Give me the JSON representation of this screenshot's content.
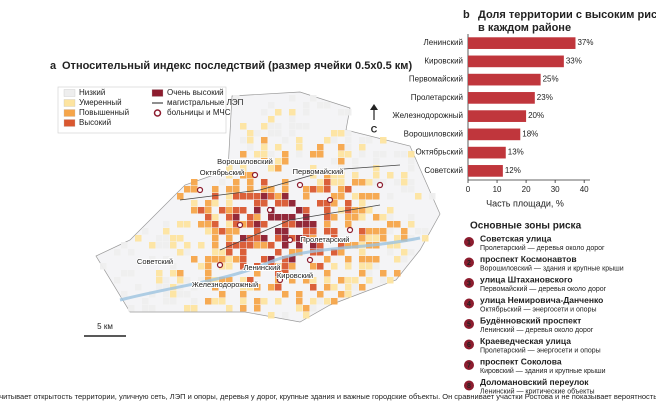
{
  "map": {
    "panel": "a",
    "title": "Относительный индекс последствий (размер ячейки 0.5x0.5 км)",
    "legend": [
      {
        "name": "Низкий",
        "color": "#eeeeee"
      },
      {
        "name": "Умеренный",
        "color": "#fde4a0"
      },
      {
        "name": "Повышенный",
        "color": "#f5a54a"
      },
      {
        "name": "Высокий",
        "color": "#d9572f"
      },
      {
        "name": "Очень высокий",
        "color": "#8c1c2e"
      },
      {
        "name": "магистральные ЛЭП",
        "color": "#444444"
      },
      {
        "name": "больницы и МЧС",
        "color": "#8c1c2e"
      }
    ],
    "districts": [
      "Ворошиловский",
      "Октябрьский",
      "Первомайский",
      "Советский",
      "Пролетарский",
      "Ленинский",
      "Кировский",
      "Железнодорожный"
    ],
    "north": "С",
    "scale": "5 км"
  },
  "chart_data": {
    "type": "bar",
    "orientation": "horizontal",
    "panel": "b",
    "title": [
      "Доля территории с высоким риском",
      "в каждом районе"
    ],
    "categories": [
      "Ленинский",
      "Кировский",
      "Первомайский",
      "Пролетарский",
      "Железнодорожный",
      "Ворошиловский",
      "Октябрьский",
      "Советский"
    ],
    "values": [
      37,
      33,
      25,
      23,
      20,
      18,
      13,
      12
    ],
    "value_labels": [
      "37%",
      "33%",
      "25%",
      "23%",
      "20%",
      "18%",
      "13%",
      "12%"
    ],
    "color": "#c0363c",
    "xlim": [
      0,
      42
    ],
    "xticks": [
      0,
      10,
      20,
      30,
      40
    ],
    "xlabel": "Часть площади, %"
  },
  "risk_zones": {
    "title": "Основные зоны риска",
    "color": "#8c1c2e",
    "items": [
      {
        "number": "1",
        "name": "Советская улица",
        "desc": "Пролетарский — деревья около дорог"
      },
      {
        "number": "2",
        "name": "проспект Космонавтов",
        "desc": "Ворошиловский — здания и крупные крыши"
      },
      {
        "number": "3",
        "name": "улица Штахановского",
        "desc": "Первомайский — деревья около дорог"
      },
      {
        "number": "4",
        "name": "улица Немировича-Данченко",
        "desc": "Октябрьский — энергосети и опоры"
      },
      {
        "number": "5",
        "name": "Будённовский проспект",
        "desc": "Ленинский — деревья около дорог"
      },
      {
        "number": "6",
        "name": "Краеведческая улица",
        "desc": "Пролетарский — энергосети и опоры"
      },
      {
        "number": "7",
        "name": "проспект Соколова",
        "desc": "Кировский — здания и крупные крыши"
      },
      {
        "number": "8",
        "name": "Доломановский переулок",
        "desc": "Ленинский — критические объекты"
      }
    ]
  },
  "footnote": "Индекс учитывает открытость территории, уличную сеть, ЛЭП и опоры, деревья у дорог, крупные здания и важные городские объекты. Он сравнивает участки Ростова и не показывает вероятность ущерба."
}
